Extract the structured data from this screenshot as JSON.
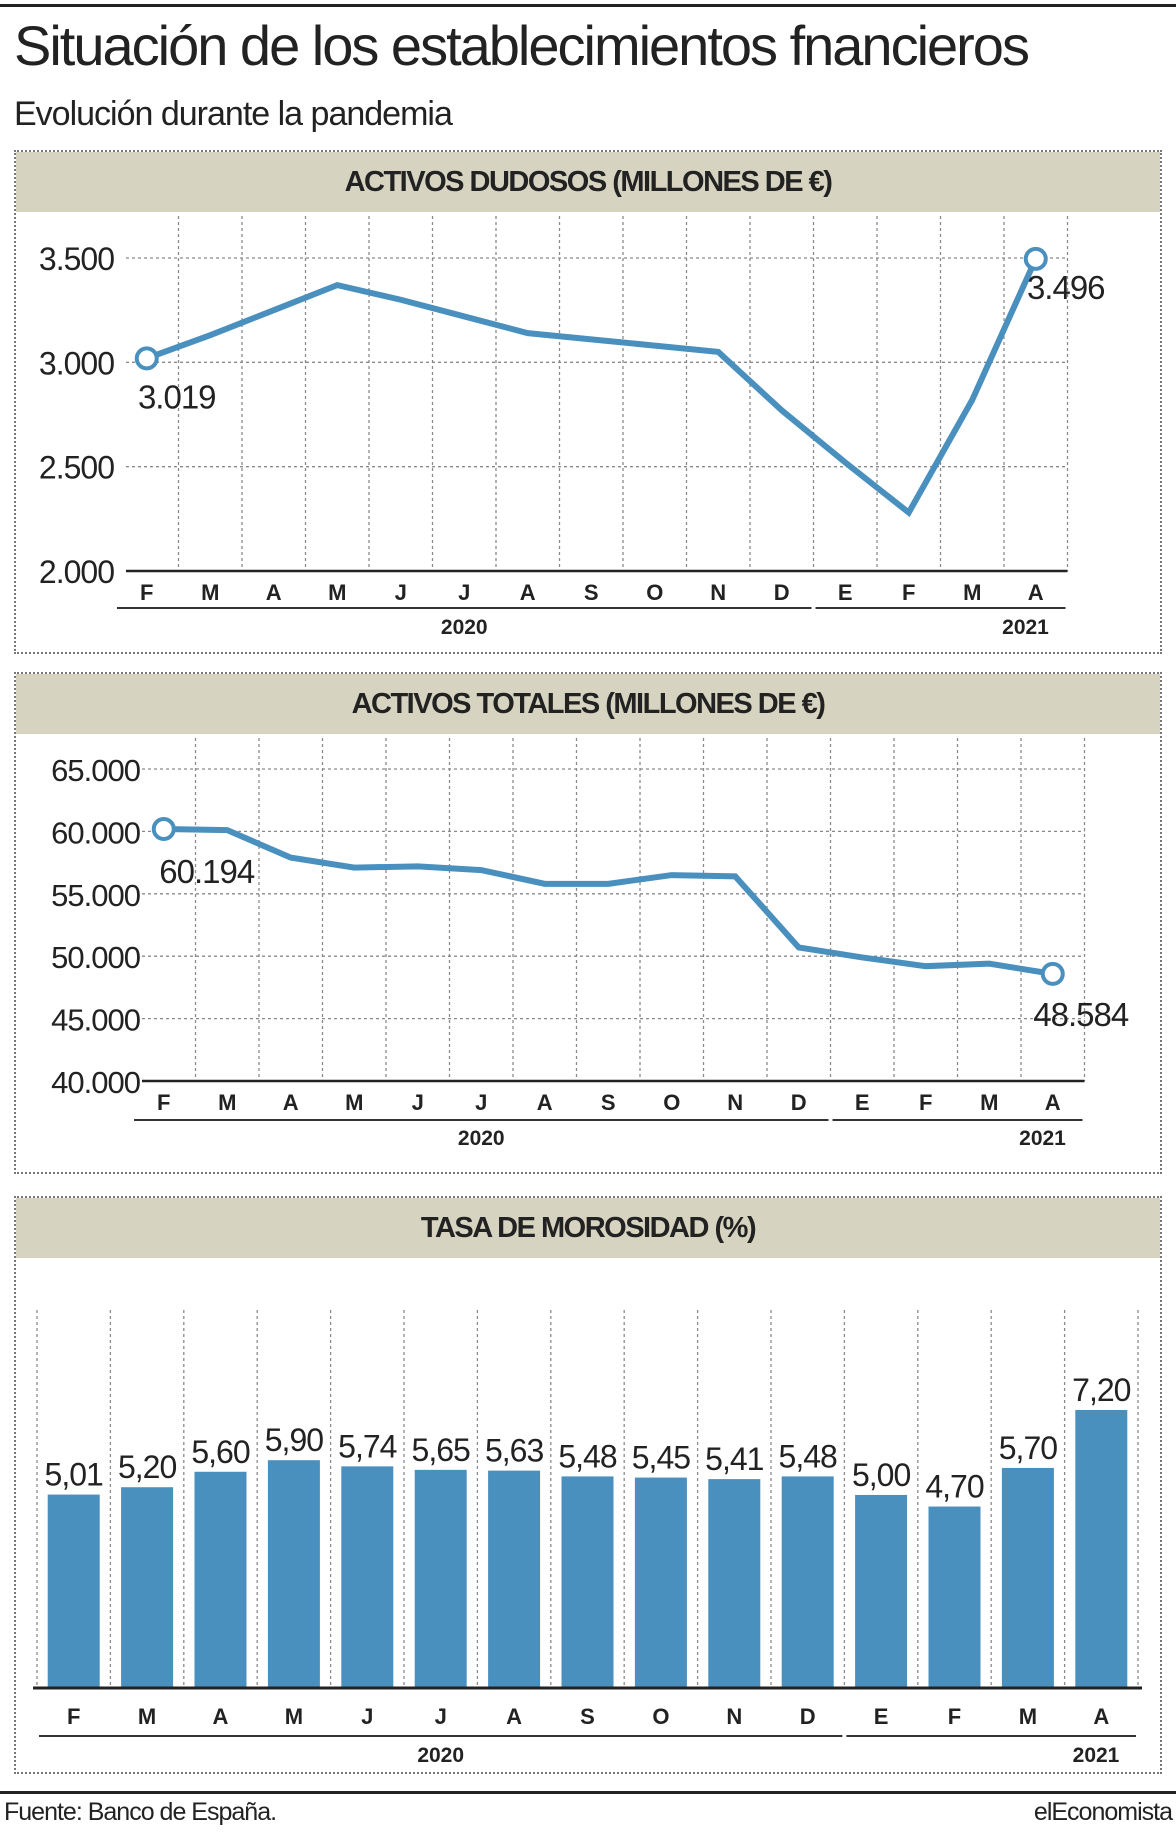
{
  "header": {
    "title": "Situación de los establecimientos fnancieros",
    "subtitle": "Evolución durante la pandemia"
  },
  "footer": {
    "source": "Fuente: Banco de España.",
    "brand": "elEconomista"
  },
  "colors": {
    "series": "#4a90bf",
    "header_band": "#d6d4c0",
    "grid": "#8a8a8a",
    "text": "#222222"
  },
  "chart_data": [
    {
      "type": "line",
      "title": "ACTIVOS DUDOSOS (MILLONES DE €)",
      "categories": [
        "F",
        "M",
        "A",
        "M",
        "J",
        "J",
        "A",
        "S",
        "O",
        "N",
        "D",
        "E",
        "F",
        "M",
        "A"
      ],
      "year_groups": [
        {
          "label": "2020",
          "start": 0,
          "end": 10
        },
        {
          "label": "2021",
          "start": 11,
          "end": 14
        }
      ],
      "yticks": [
        "3.500",
        "3.000",
        "2.500",
        "2.000"
      ],
      "ytick_values": [
        3500,
        3000,
        2500,
        2000
      ],
      "ylim": [
        2000,
        3500
      ],
      "x": [
        0,
        1,
        2,
        3,
        4,
        5,
        6,
        7,
        8,
        9,
        10,
        11,
        12,
        13,
        14
      ],
      "values": [
        3019,
        3130,
        3250,
        3370,
        3300,
        3220,
        3140,
        3110,
        3080,
        3050,
        2770,
        2520,
        2280,
        2820,
        3496
      ],
      "annotations": [
        {
          "index": 0,
          "text": "3.019"
        },
        {
          "index": 14,
          "text": "3.496"
        }
      ],
      "grid": true
    },
    {
      "type": "line",
      "title": "ACTIVOS TOTALES (MILLONES DE €)",
      "categories": [
        "F",
        "M",
        "A",
        "M",
        "J",
        "J",
        "A",
        "S",
        "O",
        "N",
        "D",
        "E",
        "F",
        "M",
        "A"
      ],
      "year_groups": [
        {
          "label": "2020",
          "start": 0,
          "end": 10
        },
        {
          "label": "2021",
          "start": 11,
          "end": 14
        }
      ],
      "yticks": [
        "65.000",
        "60.000",
        "55.000",
        "50.000",
        "45.000",
        "40.000"
      ],
      "ytick_values": [
        65000,
        60000,
        55000,
        50000,
        45000,
        40000
      ],
      "ylim": [
        40000,
        65000
      ],
      "x": [
        0,
        1,
        2,
        3,
        4,
        5,
        6,
        7,
        8,
        9,
        10,
        11,
        12,
        13,
        14
      ],
      "values": [
        60194,
        60100,
        57900,
        57100,
        57200,
        56900,
        55800,
        55800,
        56500,
        56400,
        50700,
        49900,
        49200,
        49400,
        48584
      ],
      "annotations": [
        {
          "index": 0,
          "text": "60.194"
        },
        {
          "index": 14,
          "text": "48.584"
        }
      ],
      "grid": true
    },
    {
      "type": "bar",
      "title": "TASA DE MOROSIDAD (%)",
      "categories": [
        "F",
        "M",
        "A",
        "M",
        "J",
        "J",
        "A",
        "S",
        "O",
        "N",
        "D",
        "E",
        "F",
        "M",
        "A"
      ],
      "year_groups": [
        {
          "label": "2020",
          "start": 0,
          "end": 10
        },
        {
          "label": "2021",
          "start": 11,
          "end": 14
        }
      ],
      "values": [
        5.01,
        5.2,
        5.6,
        5.9,
        5.74,
        5.65,
        5.63,
        5.48,
        5.45,
        5.41,
        5.48,
        5.0,
        4.7,
        5.7,
        7.2
      ],
      "labels": [
        "5,01",
        "5,20",
        "5,60",
        "5,90",
        "5,74",
        "5,65",
        "5,63",
        "5,48",
        "5,45",
        "5,41",
        "5,48",
        "5,00",
        "4,70",
        "5,70",
        "7,20"
      ],
      "ylim": [
        0,
        7.2
      ],
      "grid": true
    }
  ]
}
